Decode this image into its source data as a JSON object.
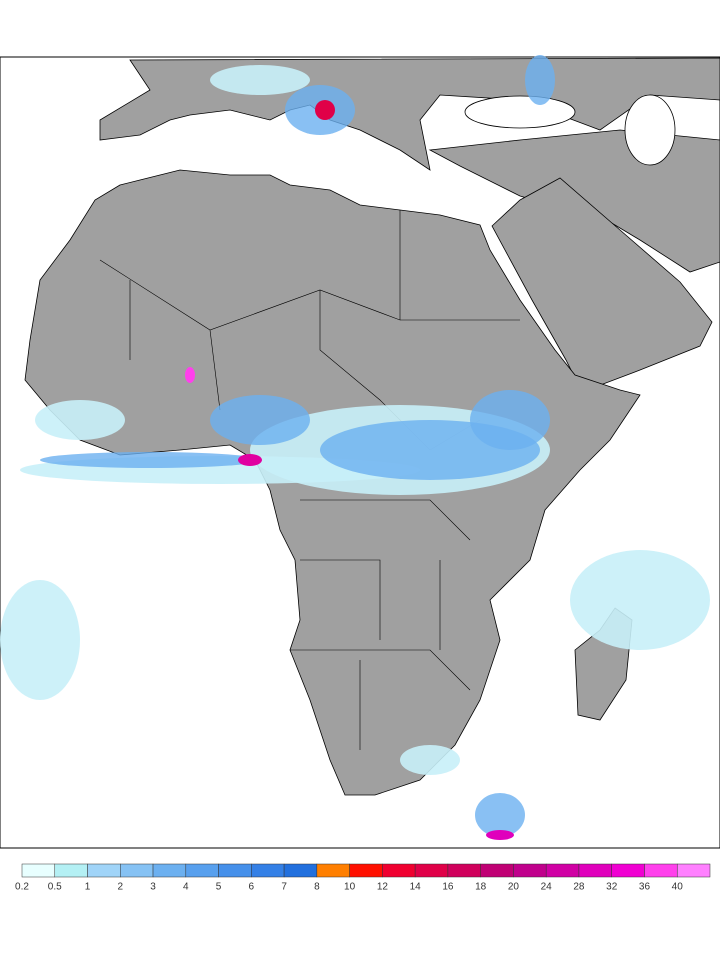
{
  "colorbar": {
    "labels": [
      0.2,
      0.5,
      1,
      2,
      3,
      4,
      5,
      6,
      7,
      8,
      10,
      12,
      14,
      16,
      18,
      20,
      24,
      28,
      32,
      36,
      40
    ],
    "colors": [
      "#e8ffff",
      "#b4f0f4",
      "#a0d4f8",
      "#86c2f4",
      "#6cb0f0",
      "#58a0ee",
      "#4690ea",
      "#3480e6",
      "#2270de",
      "#ff7f00",
      "#ff1000",
      "#f00030",
      "#e00048",
      "#d0005c",
      "#c00074",
      "#c0008c",
      "#d000a4",
      "#e000bc",
      "#f000d2",
      "#ff40ec",
      "#ff80ff"
    ]
  }
}
